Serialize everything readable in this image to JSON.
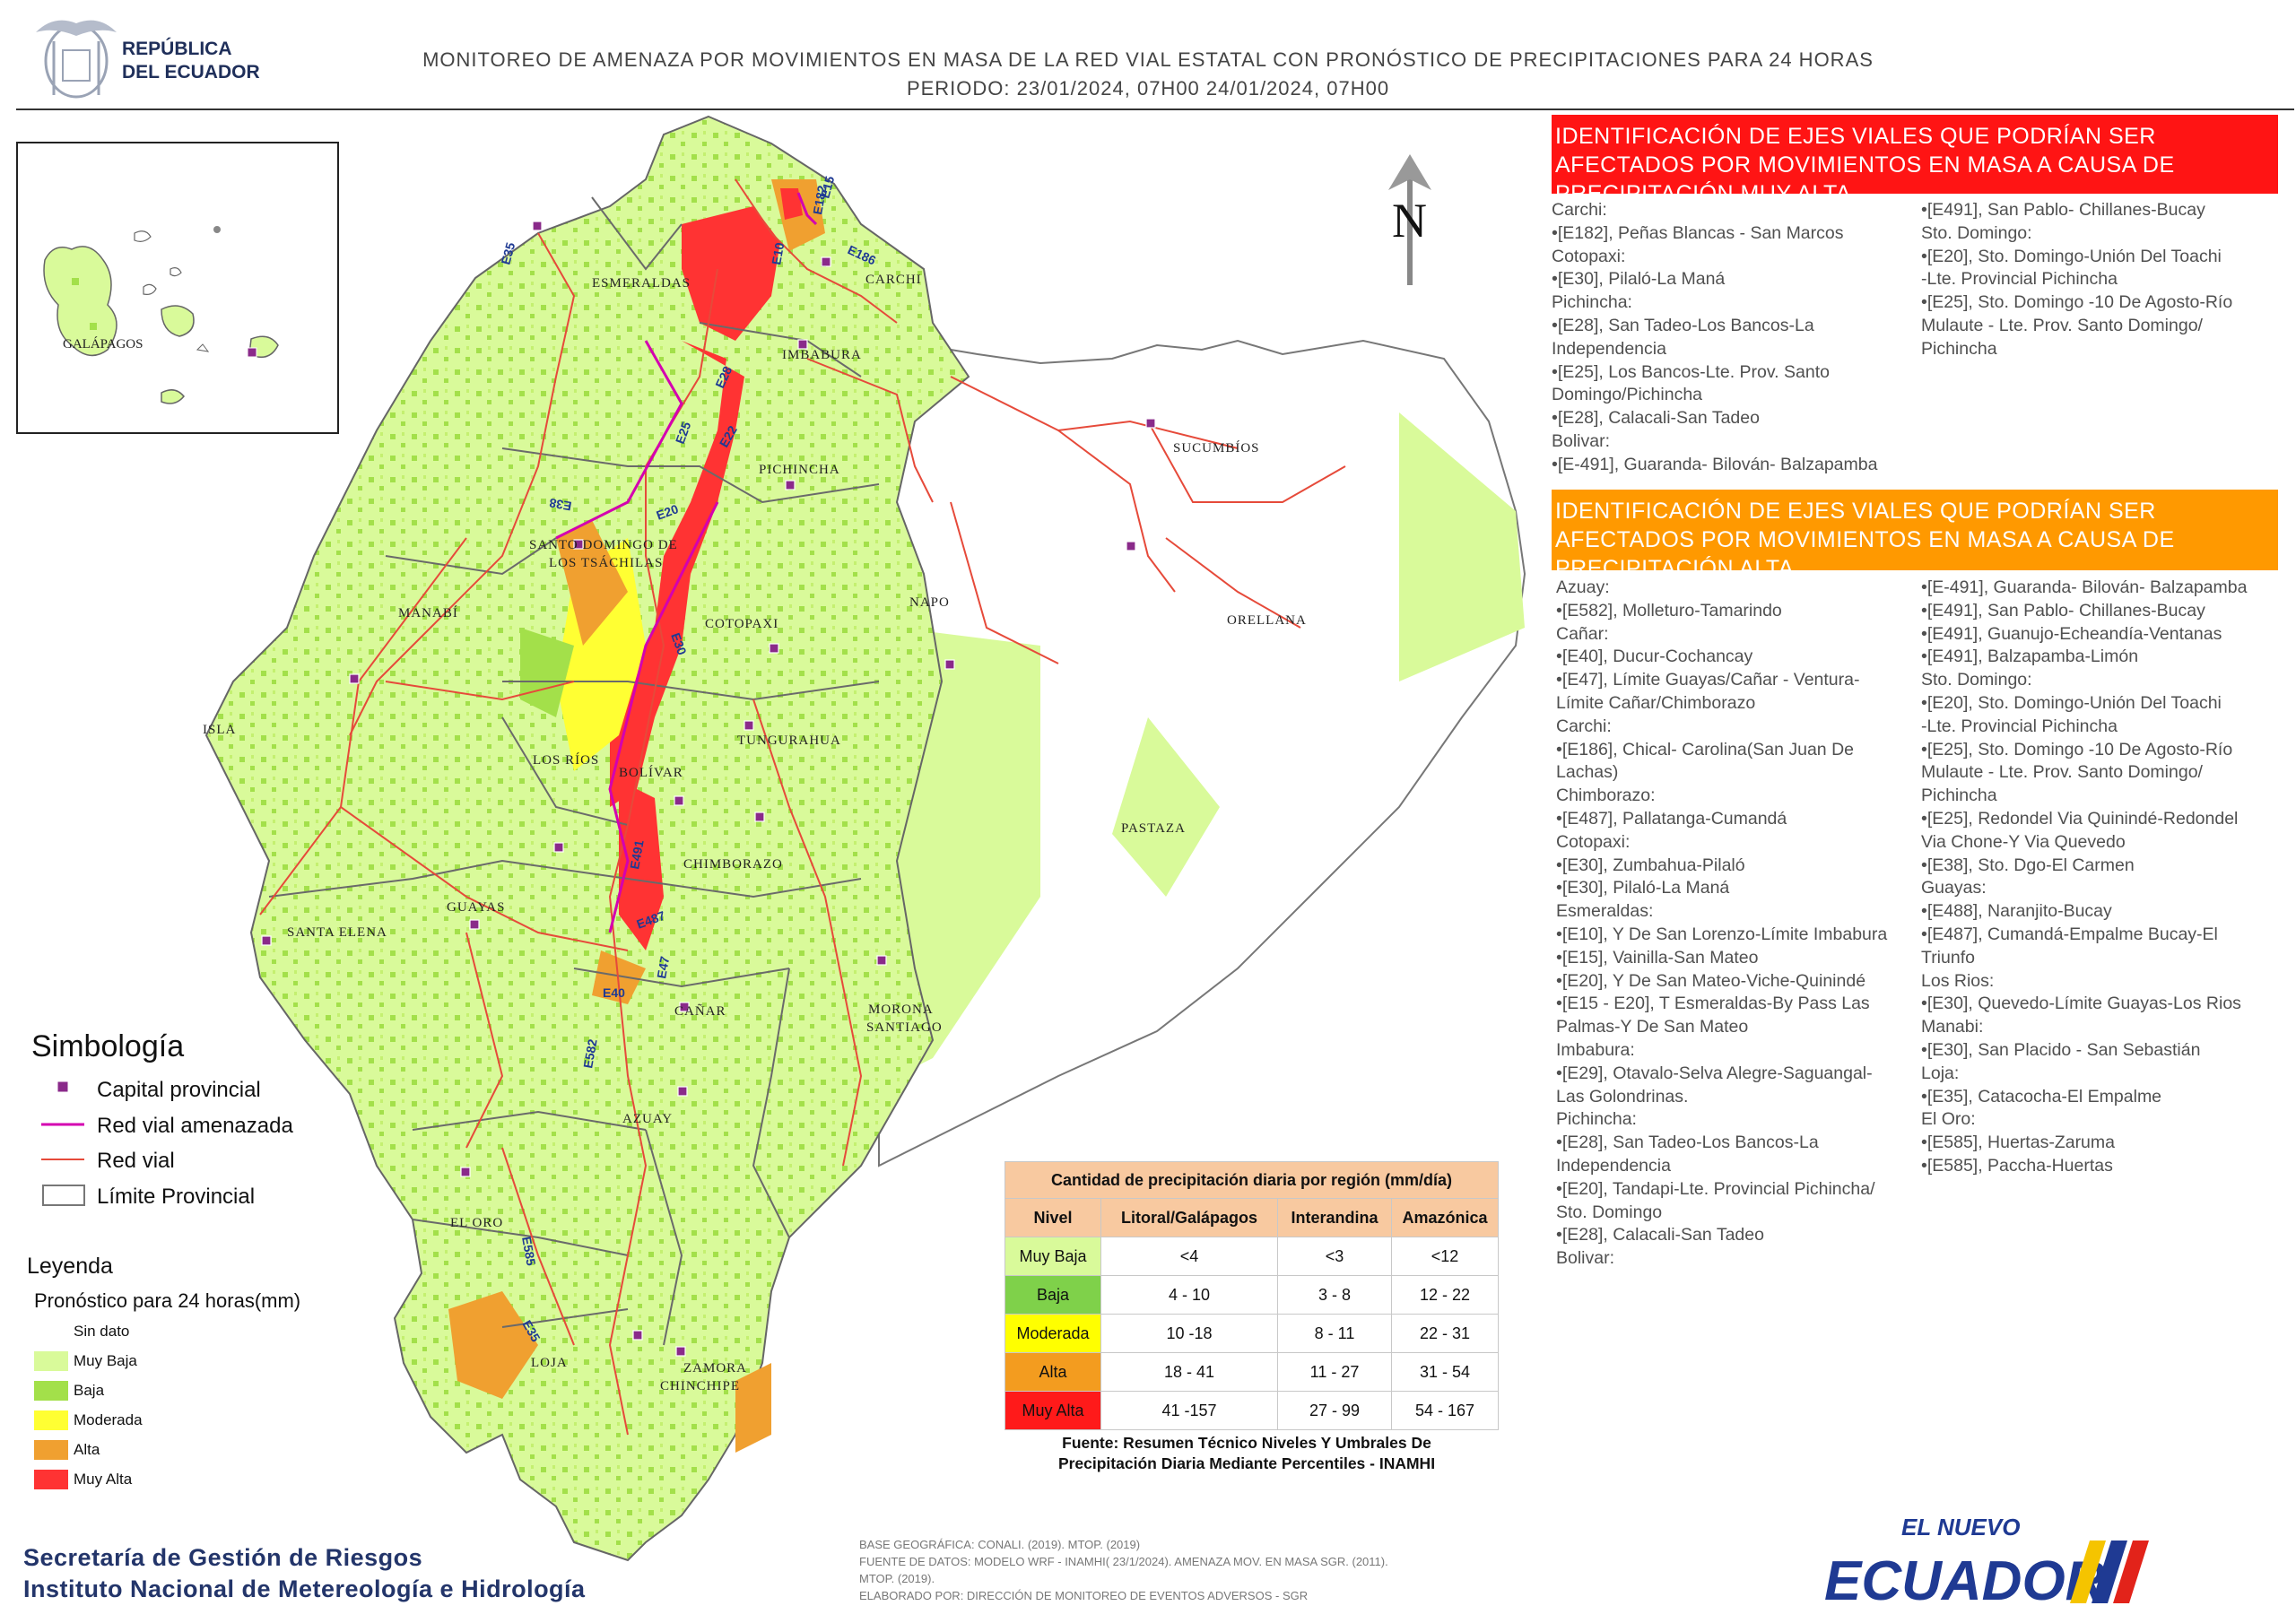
{
  "header": {
    "republica_line1": "REPÚBLICA",
    "republica_line2": "DEL ECUADOR",
    "title": "MONITOREO DE AMENAZA POR MOVIMIENTOS EN MASA DE LA RED VIAL  ESTATAL  CON PRONÓSTICO  DE  PRECIPITACIONES PARA 24 HORAS",
    "period": "PERIODO: 23/01/2024, 07H00 24/01/2024, 07H00"
  },
  "map": {
    "north_label": "N",
    "inset_label": "GALÁPAGOS",
    "provinces": [
      "ESMERALDAS",
      "CARCHI",
      "IMBABURA",
      "SUCUMBÍOS",
      "PICHINCHA",
      "SANTO DOMINGO DE",
      "LOS TSÁCHILAS",
      "NAPO",
      "ORELLANA",
      "MANABÍ",
      "COTOPAXI",
      "ISLA",
      "LOS RÍOS",
      "BOLÍVAR",
      "TUNGURAHUA",
      "PASTAZA",
      "CHIMBORAZO",
      "SANTA ELENA",
      "GUAYAS",
      "CAÑAR",
      "MORONA",
      "SANTIAGO",
      "AZUAY",
      "EL ORO",
      "LOJA",
      "ZAMORA",
      "CHINCHIPE"
    ],
    "road_codes": [
      "E15",
      "E35",
      "E10",
      "E182",
      "E186",
      "E28",
      "E25",
      "E22",
      "E38",
      "E20",
      "E30",
      "E491",
      "E487",
      "E47",
      "E40",
      "E582",
      "E585",
      "E35"
    ]
  },
  "panel_muy_alta": {
    "heading": "IDENTIFICACIÓN DE EJES VIALES QUE PODRÍAN SER AFECTADOS POR MOVIMIENTOS EN MASA A CAUSA DE PRECIPITACIÓN MUY ALTA",
    "col1": [
      "Carchi:",
      "•[E182], Peñas Blancas - San Marcos",
      "Cotopaxi:",
      "•[E30], Pilaló-La Maná",
      "Pichincha:",
      "•[E28], San Tadeo-Los Bancos-La",
      "Independencia",
      "•[E25], Los Bancos-Lte. Prov. Santo",
      "Domingo/Pichincha",
      "•[E28], Calacali-San Tadeo",
      "Bolivar:",
      "•[E-491], Guaranda- Bilován- Balzapamba"
    ],
    "col2": [
      "•[E491], San Pablo- Chillanes-Bucay",
      "Sto. Domingo:",
      "•[E20], Sto. Domingo-Unión Del Toachi",
      "-Lte. Provincial Pichincha",
      "•[E25], Sto. Domingo -10 De Agosto-Río",
      "Mulaute - Lte. Prov. Santo Domingo/",
      "Pichincha"
    ]
  },
  "panel_alta": {
    "heading": "IDENTIFICACIÓN DE EJES VIALES QUE PODRÍAN SER AFECTADOS POR MOVIMIENTOS EN MASA A CAUSA DE PRECIPITACIÓN  ALTA",
    "col1": [
      "Azuay:",
      "•[E582], Molleturo-Tamarindo",
      "Cañar:",
      "•[E40], Ducur-Cochancay",
      "•[E47], Límite Guayas/Cañar - Ventura-",
      "Límite Cañar/Chimborazo",
      "Carchi:",
      "•[E186], Chical- Carolina(San Juan De",
      "Lachas)",
      "Chimborazo:",
      "•[E487], Pallatanga-Cumandá",
      "Cotopaxi:",
      "•[E30], Zumbahua-Pilaló",
      "•[E30], Pilaló-La Maná",
      "Esmeraldas:",
      "•[E10], Y De San Lorenzo-Límite Imbabura",
      "•[E15], Vainilla-San Mateo",
      "•[E20], Y De San Mateo-Viche-Quinindé",
      "•[E15 - E20], T Esmeraldas-By Pass Las",
      "Palmas-Y De San Mateo",
      "Imbabura:",
      "•[E29], Otavalo-Selva Alegre-Saguangal-",
      "Las Golondrinas.",
      "Pichincha:",
      "•[E28], San Tadeo-Los Bancos-La",
      "Independencia",
      "•[E20], Tandapi-Lte. Provincial Pichincha/",
      "Sto. Domingo",
      "•[E28], Calacali-San Tadeo",
      "Bolivar:"
    ],
    "col2": [
      "•[E-491], Guaranda- Bilován- Balzapamba",
      "•[E491], San Pablo- Chillanes-Bucay",
      "•[E491], Guanujo-Echeandía-Ventanas",
      "•[E491], Balzapamba-Limón",
      "Sto. Domingo:",
      "•[E20], Sto. Domingo-Unión Del Toachi",
      "-Lte. Provincial Pichincha",
      "•[E25], Sto. Domingo -10 De Agosto-Río",
      "Mulaute - Lte. Prov. Santo Domingo/",
      "Pichincha",
      "•[E25], Redondel Via Quinindé-Redondel",
      "Via Chone-Y Via Quevedo",
      "•[E38], Sto. Dgo-El Carmen",
      "Guayas:",
      "•[E488], Naranjito-Bucay",
      "•[E487], Cumandá-Empalme Bucay-El",
      "Triunfo",
      "Los Rios:",
      "•[E30], Quevedo-Límite Guayas-Los Rios",
      "Manabi:",
      "•[E30], San Placido - San Sebastián",
      "Loja:",
      "•[E35], Catacocha-El Empalme",
      "El Oro:",
      "•[E585], Huertas-Zaruma",
      "•[E585], Paccha-Huertas"
    ]
  },
  "simbologia": {
    "title": "Simbología",
    "items": [
      "Capital provincial",
      "Red vial amenazada",
      "Red vial",
      "Límite Provincial"
    ]
  },
  "leyenda": {
    "title": "Leyenda",
    "subtitle": "Pronóstico para 24 horas(mm)",
    "items": [
      {
        "label": "Sin dato",
        "color": "#ffffff"
      },
      {
        "label": "Muy Baja",
        "color": "#d9fa9a"
      },
      {
        "label": "Baja",
        "color": "#a3e04a"
      },
      {
        "label": "Moderada",
        "color": "#ffff33"
      },
      {
        "label": "Alta",
        "color": "#f0a030"
      },
      {
        "label": "Muy Alta",
        "color": "#ff3333"
      }
    ]
  },
  "precip_table": {
    "title": "Cantidad de precipitación diaria por región (mm/día)",
    "headers": [
      "Nivel",
      "Litoral/Galápagos",
      "Interandina",
      "Amazónica"
    ],
    "rows": [
      {
        "level": "Muy Baja",
        "color": "#d9fa9a",
        "litoral": "<4",
        "interandina": "<3",
        "amazonica": "<12"
      },
      {
        "level": "Baja",
        "color": "#7fd14a",
        "litoral": "4 - 10",
        "interandina": "3 - 8",
        "amazonica": "12 - 22"
      },
      {
        "level": "Moderada",
        "color": "#ffff00",
        "litoral": "10 -18",
        "interandina": "8 - 11",
        "amazonica": "22 - 31"
      },
      {
        "level": "Alta",
        "color": "#f39c1f",
        "litoral": "18 - 41",
        "interandina": "11 - 27",
        "amazonica": "31 - 54"
      },
      {
        "level": "Muy Alta",
        "color": "#ff1a1a",
        "litoral": "41 -157",
        "interandina": "27 - 99",
        "amazonica": "54 - 167"
      }
    ],
    "source_line1": "Fuente: Resumen Técnico Niveles Y Umbrales De",
    "source_line2": "Precipitación Diaria Mediante Percentiles - INAMHI"
  },
  "footer": {
    "org1": "Secretaría de Gestión de Riesgos",
    "org2": "Instituto Nacional de Metereología e Hidrología",
    "notes": [
      "BASE GEOGRÁFICA: CONALI. (2019). MTOP. (2019)",
      "FUENTE DE DATOS: MODELO WRF - INAMHI( 23/1/2024).  AMENAZA MOV. EN MASA SGR. (2011).",
      "MTOP. (2019).",
      "ELABORADO POR: DIRECCIÓN DE MONITOREO DE EVENTOS ADVERSOS - SGR"
    ],
    "logo_top": "EL NUEVO",
    "logo_main": "ECUADOR"
  },
  "colors": {
    "muy_baja": "#d9fa9a",
    "baja": "#a3e04a",
    "moderada": "#ffff33",
    "alta": "#f0a030",
    "muy_alta": "#ff3333",
    "road": "#e64a3a",
    "threatened_road": "#d400b0",
    "capital": "#8a2a8a",
    "panel_red": "#ff1414",
    "panel_orange": "#ff9900",
    "brand_blue": "#1f3a93"
  }
}
